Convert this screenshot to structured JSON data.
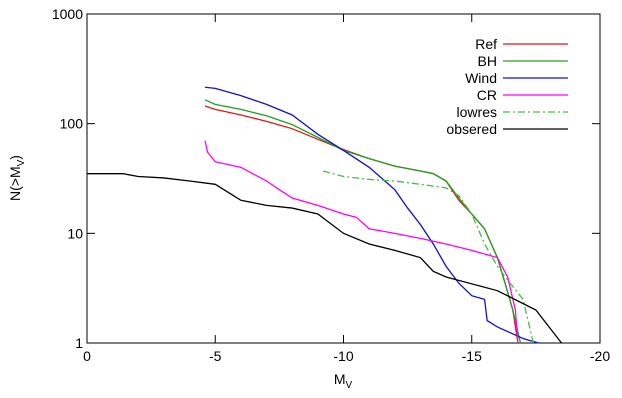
{
  "chart_data": {
    "type": "line",
    "xlabel": [
      "M",
      "V"
    ],
    "ylabel": [
      "N(>M",
      "V",
      ")"
    ],
    "xlim": [
      0,
      -20
    ],
    "xticks": [
      0,
      -5,
      -10,
      -15,
      -20
    ],
    "ylim": [
      1,
      1000
    ],
    "yticks": [
      1,
      10,
      100,
      1000
    ],
    "ylog": true,
    "legend": "top-right",
    "series": [
      {
        "name": "Ref",
        "color": "#e01818",
        "linestyle": "solid",
        "x": [
          -4.6,
          -5,
          -6,
          -7,
          -8,
          -9,
          -10,
          -11,
          -12,
          -13,
          -13.5,
          -14,
          -14.5,
          -15,
          -15.5,
          -16,
          -16.3,
          -16.6,
          -16.8
        ],
        "values": [
          145,
          135,
          120,
          105,
          90,
          72,
          58,
          48,
          41,
          37,
          35,
          30,
          20,
          15,
          11,
          6,
          3.5,
          2,
          1
        ]
      },
      {
        "name": "BH",
        "color": "#20a020",
        "linestyle": "solid",
        "x": [
          -4.6,
          -5,
          -6,
          -7,
          -8,
          -9,
          -10,
          -11,
          -12,
          -13,
          -13.5,
          -14,
          -14.5,
          -15,
          -15.5,
          -16,
          -16.3,
          -16.6,
          -16.9
        ],
        "values": [
          165,
          150,
          135,
          118,
          98,
          75,
          57,
          48,
          41,
          37,
          35,
          30,
          21,
          15,
          11,
          6,
          3.5,
          2,
          1
        ]
      },
      {
        "name": "Wind",
        "color": "#1010d0",
        "linestyle": "solid",
        "x": [
          -4.6,
          -5,
          -6,
          -7,
          -8,
          -9,
          -10,
          -11,
          -12,
          -12.5,
          -13,
          -13.5,
          -14,
          -14.5,
          -15,
          -15.5,
          -15.6,
          -16,
          -17,
          -17.6
        ],
        "values": [
          215,
          210,
          180,
          150,
          120,
          80,
          57,
          40,
          25,
          17,
          12,
          8,
          5,
          3.5,
          2.7,
          2.5,
          1.6,
          1.4,
          1.1,
          1
        ]
      },
      {
        "name": "CR",
        "color": "#ff00ff",
        "linestyle": "solid",
        "x": [
          -4.6,
          -4.7,
          -5,
          -6,
          -7,
          -7.5,
          -8,
          -9,
          -10,
          -10.5,
          -11,
          -12,
          -13,
          -14,
          -15,
          -16,
          -16.4,
          -16.7,
          -16.8
        ],
        "values": [
          70,
          55,
          45,
          40,
          30,
          25,
          21,
          18,
          15,
          14,
          11,
          10,
          9,
          8,
          7,
          6,
          4,
          2,
          1
        ]
      },
      {
        "name": "lowres",
        "color": "#40c040",
        "linestyle": "dashdot",
        "x": [
          -9.2,
          -10,
          -11,
          -12,
          -13,
          -14,
          -14.5,
          -15,
          -15.5,
          -16,
          -16.5,
          -17,
          -17.4
        ],
        "values": [
          37,
          33,
          31,
          30,
          28,
          26,
          22,
          15,
          8,
          5,
          3.5,
          2.5,
          1
        ]
      },
      {
        "name": "obsered",
        "color": "#000000",
        "linestyle": "solid",
        "x": [
          0,
          -1.4,
          -2,
          -3,
          -4,
          -5,
          -6,
          -7,
          -8,
          -9,
          -10,
          -11,
          -12,
          -13,
          -13.5,
          -14,
          -16,
          -17.5,
          -18.5
        ],
        "values": [
          35,
          35,
          33,
          32,
          30,
          28,
          20,
          18,
          17,
          15,
          10,
          8,
          7,
          6,
          4.5,
          4,
          3,
          2,
          1
        ]
      }
    ]
  }
}
